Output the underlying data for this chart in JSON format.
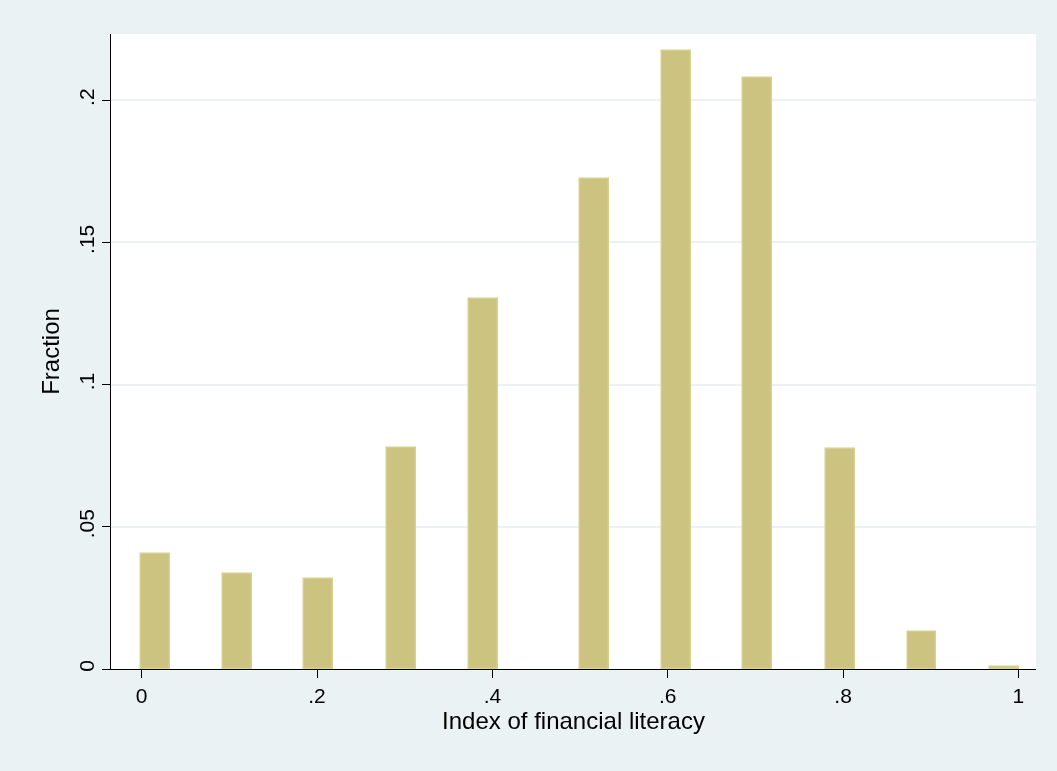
{
  "chart_data": {
    "type": "bar",
    "xlabel": "Index of financial literacy",
    "ylabel": "Fraction",
    "x": [
      0.016,
      0.109,
      0.202,
      0.296,
      0.39,
      0.516,
      0.61,
      0.702,
      0.797,
      0.89,
      0.984
    ],
    "values": [
      0.0405,
      0.0333,
      0.0316,
      0.0778,
      0.13,
      0.1723,
      0.2174,
      0.2079,
      0.0773,
      0.0131,
      0.0006
    ],
    "color": "#cbc37f",
    "xlim": [
      -0.035,
      1.02
    ],
    "xticks": [
      0,
      {
        "value": 0.2,
        "label": ".2"
      },
      {
        "value": 0.4,
        "label": ".4"
      },
      {
        "value": 0.6,
        "label": ".6"
      },
      {
        "value": 0.8,
        "label": ".8"
      },
      1
    ],
    "ylim": [
      0,
      0.2233
    ],
    "yticks": [
      0,
      {
        "value": 0.05,
        "label": ".05"
      },
      {
        "value": 0.1,
        "label": ".1"
      },
      {
        "value": 0.15,
        "label": ".15"
      },
      {
        "value": 0.2,
        "label": ".2"
      }
    ],
    "grid": "y"
  }
}
